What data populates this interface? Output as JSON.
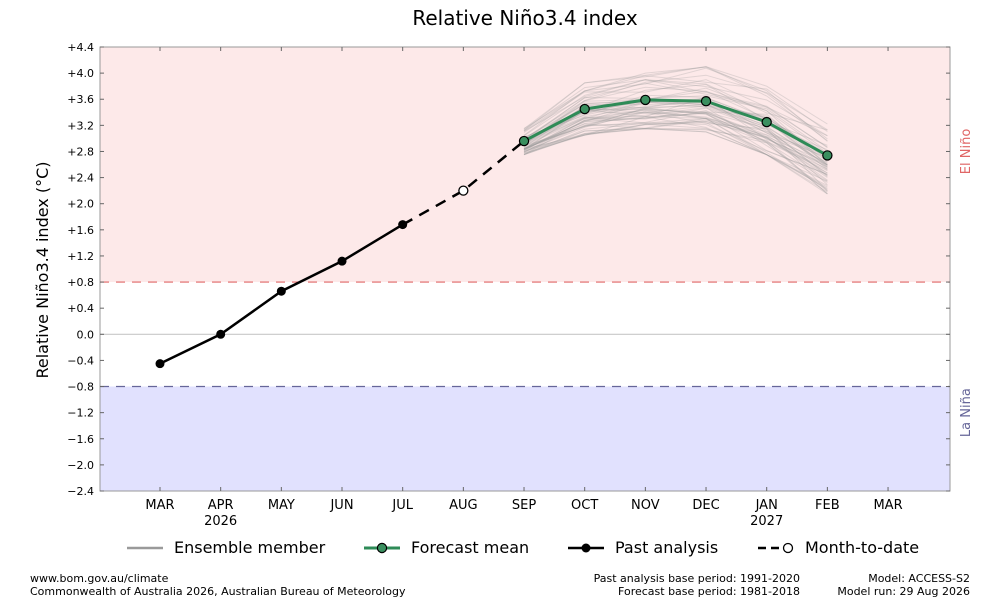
{
  "colors": {
    "el_nino_bg": "#fde9e9",
    "la_nina_bg": "#e1e1fe",
    "el_nino_line": "#e06666",
    "la_nina_line": "#666699",
    "forecast_mean": "#2e8b57",
    "forecast_marker": "#3a8f5f",
    "ensemble": "#9a9a9a",
    "past": "#000000"
  },
  "chart_data": {
    "type": "line",
    "title": "Relative Niño3.4 index",
    "ylabel": "Relative Niño3.4 index (°C)",
    "ylim": [
      -2.4,
      4.4
    ],
    "yticks": [
      "+4.4",
      "+4.0",
      "+3.6",
      "+3.2",
      "+2.8",
      "+2.4",
      "+2.0",
      "+1.6",
      "+1.2",
      "+0.8",
      "+0.4",
      "0.0",
      "−0.4",
      "−0.8",
      "−1.2",
      "−1.6",
      "−2.0",
      "−2.4"
    ],
    "ytick_values": [
      4.4,
      4.0,
      3.6,
      3.2,
      2.8,
      2.4,
      2.0,
      1.6,
      1.2,
      0.8,
      0.4,
      0.0,
      -0.4,
      -0.8,
      -1.2,
      -1.6,
      -2.0,
      -2.4
    ],
    "categories": [
      "MAR",
      "APR",
      "MAY",
      "JUN",
      "JUL",
      "AUG",
      "SEP",
      "OCT",
      "NOV",
      "DEC",
      "JAN",
      "FEB",
      "MAR"
    ],
    "year_labels": [
      {
        "index": 1,
        "label": "2026"
      },
      {
        "index": 10,
        "label": "2027"
      }
    ],
    "thresholds": {
      "el_nino": 0.8,
      "la_nina": -0.8
    },
    "region_labels": {
      "el_nino": "El Niño",
      "la_nina": "La Niña"
    },
    "grid": false,
    "legend_position": "bottom",
    "past_analysis": {
      "name": "Past analysis",
      "x": [
        0,
        1,
        2,
        3,
        4
      ],
      "values": [
        -0.45,
        0.0,
        0.66,
        1.12,
        1.68
      ]
    },
    "month_to_date": {
      "name": "Month-to-date",
      "x": [
        5
      ],
      "values": [
        2.2
      ]
    },
    "forecast_mean": {
      "name": "Forecast mean",
      "x": [
        6,
        7,
        8,
        9,
        10,
        11
      ],
      "values": [
        2.96,
        3.45,
        3.59,
        3.57,
        3.25,
        2.74
      ]
    },
    "ensemble_spread": {
      "name": "Ensemble member",
      "x": [
        6,
        7,
        8,
        9,
        10,
        11
      ],
      "min": [
        2.75,
        3.05,
        3.15,
        3.1,
        2.75,
        2.15
      ],
      "max": [
        3.15,
        3.85,
        4.0,
        4.1,
        3.8,
        3.25
      ]
    },
    "legend": [
      "Ensemble member",
      "Forecast mean",
      "Past analysis",
      "Month-to-date"
    ]
  },
  "footer": {
    "left_line1": "www.bom.gov.au/climate",
    "left_line2": "Commonwealth of Australia 2026, Australian Bureau of Meteorology",
    "mid_line1": "Past analysis base period: 1991-2020",
    "mid_line2": "Forecast base period: 1981-2018",
    "right_line1": "Model: ACCESS-S2",
    "right_line2": "Model run: 29 Aug 2026"
  }
}
